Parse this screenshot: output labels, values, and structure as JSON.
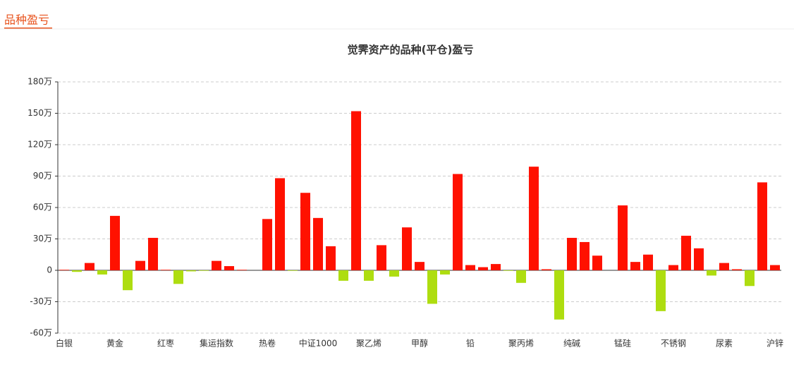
{
  "header": {
    "title": "品种盈亏"
  },
  "chart_data": {
    "type": "bar",
    "title": "觉霁资产的品种(平仓)盈亏",
    "categories": [
      "白银",
      null,
      null,
      null,
      "黄金",
      null,
      null,
      null,
      "红枣",
      null,
      null,
      null,
      "集运指数",
      null,
      null,
      null,
      "热卷",
      null,
      null,
      null,
      "中证1000",
      null,
      null,
      null,
      "聚乙烯",
      null,
      null,
      null,
      "甲醇",
      null,
      null,
      null,
      "铅",
      null,
      null,
      null,
      "聚丙烯",
      null,
      null,
      null,
      "纯碱",
      null,
      null,
      null,
      "锰硅",
      null,
      null,
      null,
      "不锈钢",
      null,
      null,
      null,
      "尿素",
      null,
      null,
      null,
      "沪锌"
    ],
    "values": [
      0.5,
      -1.5,
      7,
      -4,
      52,
      -19,
      9,
      31,
      0.5,
      -13,
      -1,
      -0.5,
      9,
      4,
      0.5,
      0,
      49,
      88,
      -0.5,
      74,
      50,
      23,
      -10,
      152,
      -10,
      24,
      -6,
      41,
      8,
      -32,
      -4,
      92,
      5,
      3,
      6,
      -0.5,
      -12,
      99,
      1,
      -47,
      31,
      27,
      14,
      0,
      62,
      8,
      15,
      -39,
      5,
      33,
      21,
      -5,
      7,
      1,
      -15,
      84,
      5
    ],
    "positive_color": "#ff1100",
    "negative_color": "#aedd10",
    "ylim": [
      -60,
      180
    ],
    "yticks": [
      {
        "value": -60,
        "label": "-60万"
      },
      {
        "value": -30,
        "label": "-30万"
      },
      {
        "value": 0,
        "label": "0"
      },
      {
        "value": 30,
        "label": "30万"
      },
      {
        "value": 60,
        "label": "60万"
      },
      {
        "value": 90,
        "label": "90万"
      },
      {
        "value": 120,
        "label": "120万"
      },
      {
        "value": 150,
        "label": "150万"
      },
      {
        "value": 180,
        "label": "180万"
      }
    ],
    "grid": true
  }
}
